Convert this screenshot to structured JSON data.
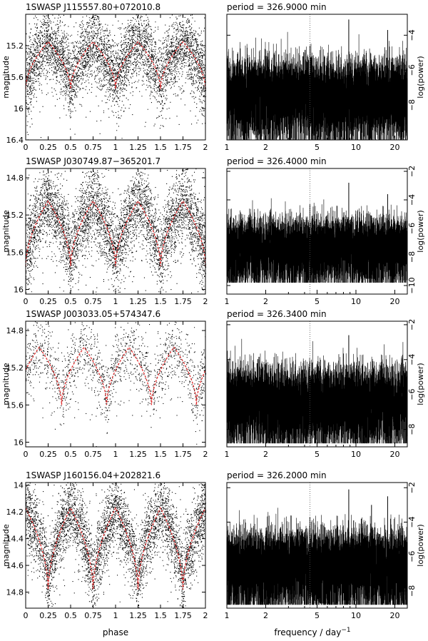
{
  "figure": {
    "xlabel_left": "phase",
    "xlabel_right_main": "frequency / day",
    "xlabel_right_sup": "−1"
  },
  "chart_data": [
    {
      "type": "scatter",
      "panel": "lightcurve",
      "title": "1SWASP J115557.80+072010.8",
      "xlabel": "phase",
      "ylabel": "magnitude",
      "xlim": [
        0,
        2
      ],
      "ylim": [
        16.4,
        14.8
      ],
      "y_inverted": true,
      "xticks": [
        "0",
        "0.25",
        "0.5",
        "0.75",
        "1",
        "1.25",
        "1.5",
        "1.75",
        "2"
      ],
      "yticks": [
        "15.2",
        "15.6",
        "16",
        "16.4"
      ],
      "yticks_values": [
        15.2,
        15.6,
        16.0,
        16.4
      ],
      "model": {
        "max_mag": 15.15,
        "min_mag": 15.75,
        "min_phases": [
          0.0,
          0.5,
          1.0,
          1.5
        ],
        "secondary_min_mag": 15.75
      },
      "scatter_sigma": 0.22,
      "fit_color": "#e03030"
    },
    {
      "type": "line",
      "panel": "periodogram",
      "title": "period = 326.9000 min",
      "xlabel": "frequency / day−1",
      "ylabel": "log(power)",
      "xscale": "log",
      "xlim": [
        1,
        25
      ],
      "ylim": [
        -10,
        -2.8
      ],
      "xticks": [
        "1",
        "2",
        "5",
        "10",
        "20"
      ],
      "xticks_values": [
        1,
        2,
        5,
        10,
        20
      ],
      "yticks": [
        "−4",
        "−6",
        "−8"
      ],
      "yticks_values": [
        -4,
        -6,
        -8
      ],
      "dotted_line_frequency": 4.4,
      "baseline": -6.9,
      "noise_floor": -10,
      "peaks": [
        [
          4.4,
          -4.6
        ],
        [
          8.8,
          -3.1
        ],
        [
          17.6,
          -3.7
        ],
        [
          13.2,
          -5.4
        ],
        [
          2.0,
          -5.2
        ]
      ]
    },
    {
      "type": "scatter",
      "panel": "lightcurve",
      "title": "1SWASP J030749.87−365201.7",
      "xlabel": "phase",
      "ylabel": "magnitude",
      "xlim": [
        0,
        2
      ],
      "ylim": [
        16.05,
        14.7
      ],
      "y_inverted": true,
      "xticks": [
        "0",
        "0.25",
        "0.5",
        "0.75",
        "1",
        "1.25",
        "1.5",
        "1.75",
        "2"
      ],
      "yticks": [
        "14.8",
        "15.2",
        "15.6",
        "16"
      ],
      "yticks_values": [
        14.8,
        15.2,
        15.6,
        16.0
      ],
      "model": {
        "max_mag": 15.05,
        "min_mag": 15.75,
        "min_phases": [
          0.0,
          0.5,
          1.0,
          1.5
        ],
        "secondary_min_mag": 15.75
      },
      "scatter_sigma": 0.2,
      "fit_color": "#e03030"
    },
    {
      "type": "line",
      "panel": "periodogram",
      "title": "period = 326.4000 min",
      "xlabel": "frequency / day−1",
      "ylabel": "log(power)",
      "xscale": "log",
      "xlim": [
        1,
        25
      ],
      "ylim": [
        -10.6,
        -1.8
      ],
      "xticks": [
        "1",
        "2",
        "5",
        "10",
        "20"
      ],
      "xticks_values": [
        1,
        2,
        5,
        10,
        20
      ],
      "yticks": [
        "−2",
        "−4",
        "−6",
        "−8",
        "−10"
      ],
      "yticks_values": [
        -2,
        -4,
        -6,
        -8,
        -10
      ],
      "dotted_line_frequency": 4.4,
      "baseline": -6.8,
      "noise_floor": -9.8,
      "peaks": [
        [
          4.4,
          -4.3
        ],
        [
          8.8,
          -2.8
        ],
        [
          17.6,
          -3.6
        ],
        [
          13.2,
          -5.1
        ]
      ]
    },
    {
      "type": "scatter",
      "panel": "lightcurve",
      "title": "1SWASP J003033.05+574347.6",
      "xlabel": "phase",
      "ylabel": "magnitude",
      "xlim": [
        0,
        2
      ],
      "ylim": [
        16.05,
        14.7
      ],
      "y_inverted": true,
      "xticks": [
        "0",
        "0.25",
        "0.5",
        "0.75",
        "1",
        "1.25",
        "1.5",
        "1.75",
        "2"
      ],
      "yticks": [
        "14.8",
        "15.2",
        "15.6",
        "16"
      ],
      "yticks_values": [
        14.8,
        15.2,
        15.6,
        16.0
      ],
      "model": {
        "max_mag": 14.98,
        "min_mag": 15.6,
        "min_phases": [
          0.4,
          0.9,
          1.4,
          1.9
        ],
        "secondary_min_mag": 15.6
      },
      "scatter_sigma": 0.18,
      "fit_color": "#e03030"
    },
    {
      "type": "line",
      "panel": "periodogram",
      "title": "period = 326.3400 min",
      "xlabel": "frequency / day−1",
      "ylabel": "log(power)",
      "xscale": "log",
      "xlim": [
        1,
        25
      ],
      "ylim": [
        -9.0,
        -1.8
      ],
      "xticks": [
        "1",
        "2",
        "5",
        "10",
        "20"
      ],
      "xticks_values": [
        1,
        2,
        5,
        10,
        20
      ],
      "yticks": [
        "−2",
        "−4",
        "−6",
        "−8"
      ],
      "yticks_values": [
        -2,
        -4,
        -6,
        -8
      ],
      "dotted_line_frequency": 4.4,
      "baseline": -5.9,
      "noise_floor": -8.8,
      "peaks": [
        [
          4.4,
          -4.1
        ],
        [
          8.8,
          -2.6
        ],
        [
          17.6,
          -4.4
        ]
      ]
    },
    {
      "type": "scatter",
      "panel": "lightcurve",
      "title": "1SWASP J160156.04+202821.6",
      "xlabel": "phase",
      "ylabel": "magnitude",
      "xlim": [
        0,
        2
      ],
      "ylim": [
        14.92,
        13.98
      ],
      "y_inverted": true,
      "xticks": [
        "0",
        "0.25",
        "0.5",
        "0.75",
        "1",
        "1.25",
        "1.5",
        "1.75",
        "2"
      ],
      "yticks": [
        "14",
        "14.2",
        "14.4",
        "14.6",
        "14.8"
      ],
      "yticks_values": [
        14.0,
        14.2,
        14.4,
        14.6,
        14.8
      ],
      "model": {
        "max_mag": 14.17,
        "min_mag": 14.78,
        "min_phases": [
          0.25,
          0.75,
          1.25,
          1.75
        ],
        "secondary_min_mag": 14.78
      },
      "scatter_sigma": 0.13,
      "fit_color": "#e03030"
    },
    {
      "type": "line",
      "panel": "periodogram",
      "title": "period = 326.2000 min",
      "xlabel": "frequency / day−1",
      "ylabel": "log(power)",
      "xscale": "log",
      "xlim": [
        1,
        25
      ],
      "ylim": [
        -9.0,
        -1.7
      ],
      "xticks": [
        "1",
        "2",
        "5",
        "10",
        "20"
      ],
      "xticks_values": [
        1,
        2,
        5,
        10,
        20
      ],
      "yticks": [
        "−2",
        "−4",
        "−6",
        "−8"
      ],
      "yticks_values": [
        -2,
        -4,
        -6,
        -8
      ],
      "dotted_line_frequency": 4.4,
      "baseline": -6.0,
      "noise_floor": -8.8,
      "peaks": [
        [
          4.4,
          -3.7
        ],
        [
          8.8,
          -2.1
        ],
        [
          13.2,
          -3.0
        ],
        [
          17.6,
          -2.5
        ],
        [
          11.0,
          -3.8
        ],
        [
          9.6,
          -3.9
        ]
      ]
    }
  ]
}
